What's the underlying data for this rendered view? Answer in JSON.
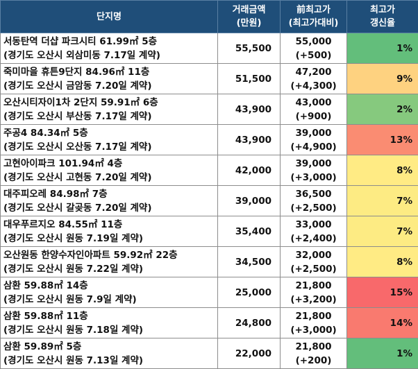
{
  "header": {
    "name": "단지명",
    "price_line1": "거래금액",
    "price_line2": "(만원)",
    "prev_line1": "前최고가",
    "prev_line2": "(최고가대비)",
    "rate_line1": "최고가",
    "rate_line2": "갱신율"
  },
  "rows": [
    {
      "title": "서동탄역 더샵 파크시티 61.99㎡ 5층",
      "sub": "(경기도 오산시 외삼미동 7.17일 계약)",
      "price": "55,500",
      "prev": "55,000",
      "diff": "(+500)",
      "rate": "1%",
      "color": "#63be7b"
    },
    {
      "title": "죽미마을 휴튼9단지 84.96㎡ 11층",
      "sub": "(경기도 오산시 금암동 7.20일 계약)",
      "price": "51,500",
      "prev": "47,200",
      "diff": "(+4,300)",
      "rate": "9%",
      "color": "#fed280"
    },
    {
      "title": "오산시티자이1차 2단지 59.91㎡ 6층",
      "sub": "(경기도 오산시 부산동 7.17일 계약)",
      "price": "43,900",
      "prev": "43,000",
      "diff": "(+900)",
      "rate": "2%",
      "color": "#86c97e"
    },
    {
      "title": "주공4 84.34㎡ 5층",
      "sub": "(경기도 오산시 오산동 7.17일 계약)",
      "price": "43,900",
      "prev": "39,000",
      "diff": "(+4,900)",
      "rate": "13%",
      "color": "#fa8c72"
    },
    {
      "title": "고현아이파크 101.94㎡ 4층",
      "sub": "(경기도 오산시 고현동 7.20일 계약)",
      "price": "42,000",
      "prev": "39,000",
      "diff": "(+3,000)",
      "rate": "8%",
      "color": "#ffeb84"
    },
    {
      "title": "대주피오레 84.98㎡ 7층",
      "sub": "(경기도 오산시 갈곶동 7.20일 계약)",
      "price": "39,000",
      "prev": "36,500",
      "diff": "(+2,500)",
      "rate": "7%",
      "color": "#fdeb83"
    },
    {
      "title": "대우푸르지오 84.55㎡ 11층",
      "sub": "(경기도 오산시 원동 7.19일 계약)",
      "price": "35,400",
      "prev": "33,000",
      "diff": "(+2,400)",
      "rate": "7%",
      "color": "#fdeb83"
    },
    {
      "title": "오산원동 한양수자인아파트 59.92㎡ 22층",
      "sub": "(경기도 오산시 원동 7.22일 계약)",
      "price": "34,500",
      "prev": "32,000",
      "diff": "(+2,500)",
      "rate": "8%",
      "color": "#ffeb84"
    },
    {
      "title": "삼환 59.88㎡ 14층",
      "sub": "(경기도 오산시 원동 7.9일 계약)",
      "price": "25,000",
      "prev": "21,800",
      "diff": "(+3,200)",
      "rate": "15%",
      "color": "#f8696b"
    },
    {
      "title": "삼환 59.88㎡ 11층",
      "sub": "(경기도 오산시 원동 7.18일 계약)",
      "price": "24,800",
      "prev": "21,800",
      "diff": "(+3,000)",
      "rate": "14%",
      "color": "#f97a6f"
    },
    {
      "title": "삼환 59.89㎡ 5층",
      "sub": "(경기도 오산시 원동 7.13일 계약)",
      "price": "22,000",
      "prev": "21,800",
      "diff": "(+200)",
      "rate": "1%",
      "color": "#63be7b"
    }
  ]
}
